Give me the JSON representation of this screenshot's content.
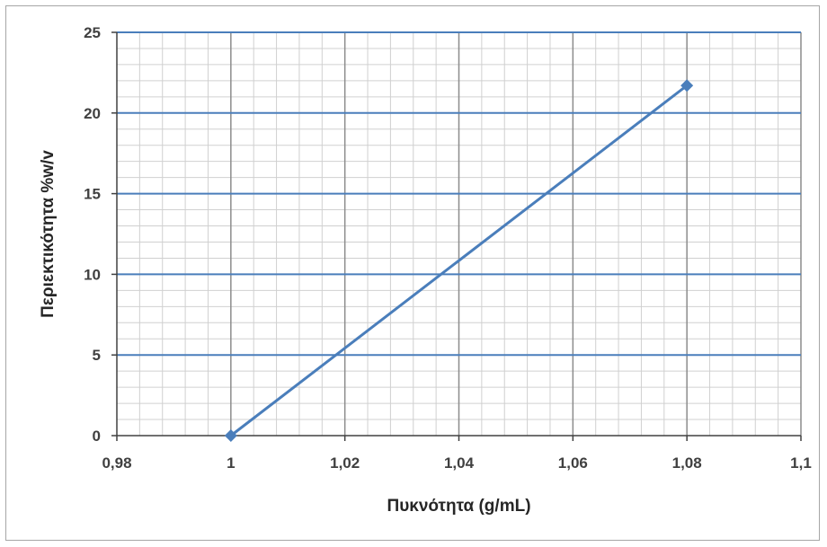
{
  "chart_data": {
    "type": "line",
    "title": "",
    "xlabel": "Πυκνότητα (g/mL)",
    "ylabel": "Περιεκτικότητα %w/v",
    "xlim": [
      0.98,
      1.1
    ],
    "ylim": [
      0,
      25
    ],
    "x_ticks": [
      0.98,
      1.0,
      1.02,
      1.04,
      1.06,
      1.08,
      1.1
    ],
    "x_tick_labels": [
      "0,98",
      "1",
      "1,02",
      "1,04",
      "1,06",
      "1,08",
      "1,1"
    ],
    "y_ticks": [
      0,
      5,
      10,
      15,
      20,
      25
    ],
    "y_tick_labels": [
      "0",
      "5",
      "10",
      "15",
      "20",
      "25"
    ],
    "grid": true,
    "legend": "none",
    "series": [
      {
        "x": [
          1.0,
          1.08
        ],
        "y": [
          0,
          21.7
        ],
        "marker": "diamond"
      }
    ],
    "colors": {
      "series": "#4a7ebb",
      "major_h_grid": "#4a7ebb",
      "minor_grid": "#d0d0d0",
      "major_v_grid": "#8c8c8c",
      "axis": "#404040"
    }
  }
}
